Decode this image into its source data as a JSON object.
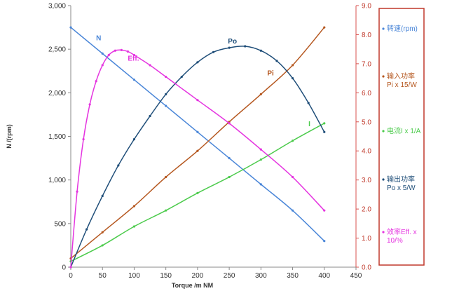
{
  "chart_data": {
    "type": "line",
    "xlabel": "Torque  /m NM",
    "ylabel": "N /(rpm)",
    "xlim": [
      0,
      450
    ],
    "xticks": [
      0,
      50,
      100,
      150,
      200,
      250,
      300,
      350,
      400,
      450
    ],
    "ylim_left": [
      0,
      3000
    ],
    "yticks_left": [
      "0",
      "500",
      "1,000",
      "1,500",
      "2,000",
      "2,500",
      "3,000"
    ],
    "yticks_left_values": [
      0,
      500,
      1000,
      1500,
      2000,
      2500,
      3000
    ],
    "ylim_right": [
      0,
      9
    ],
    "yticks_right": [
      "0.0",
      "1.0",
      "2.0",
      "3.0",
      "4.0",
      "5.0",
      "6.0",
      "7.0",
      "8.0",
      "9.0"
    ],
    "yticks_right_values": [
      0,
      1,
      2,
      3,
      4,
      5,
      6,
      7,
      8,
      9
    ],
    "grid": false,
    "legend_position": "right",
    "series": [
      {
        "name": "N",
        "legend": "转速(rpm)",
        "axis": "left",
        "color": "#4a86d8",
        "x": [
          0,
          50,
          100,
          150,
          200,
          250,
          300,
          350,
          400
        ],
        "y": [
          2750,
          2450,
          2150,
          1850,
          1550,
          1250,
          950,
          650,
          300
        ],
        "label_at": [
          40,
          2600
        ]
      },
      {
        "name": "Pi",
        "legend": "输入功率\nPi  x 15/W",
        "axis": "right",
        "color": "#b5571f",
        "x": [
          0,
          50,
          100,
          150,
          200,
          250,
          300,
          350,
          400
        ],
        "y": [
          0.3,
          1.2,
          2.1,
          3.1,
          4.0,
          5.0,
          5.95,
          6.95,
          8.25
        ],
        "label_at": [
          310,
          6.6
        ]
      },
      {
        "name": "I",
        "legend": "电流I  x 1/A",
        "axis": "right",
        "color": "#4ccb4c",
        "x": [
          0,
          50,
          100,
          150,
          200,
          250,
          300,
          350,
          400
        ],
        "y": [
          0.2,
          0.75,
          1.4,
          1.95,
          2.55,
          3.1,
          3.7,
          4.35,
          4.95
        ],
        "label_at": [
          375,
          4.85
        ]
      },
      {
        "name": "Po",
        "legend": "输出功率\nPo x 5/W",
        "axis": "right",
        "color": "#1f4e79",
        "x": [
          0,
          25,
          50,
          75,
          100,
          125,
          150,
          175,
          200,
          225,
          250,
          275,
          300,
          325,
          350,
          375,
          400
        ],
        "y": [
          0.0,
          1.3,
          2.45,
          3.5,
          4.4,
          5.2,
          5.95,
          6.55,
          7.05,
          7.4,
          7.55,
          7.6,
          7.45,
          7.1,
          6.5,
          5.65,
          4.65
        ],
        "label_at": [
          248,
          7.7
        ]
      },
      {
        "name": "Eff.",
        "legend": "效率Eff.  x\n10/%",
        "axis": "right",
        "color": "#e535e0",
        "x": [
          0,
          10,
          20,
          30,
          40,
          50,
          60,
          70,
          80,
          90,
          100,
          125,
          150,
          200,
          250,
          300,
          350,
          400
        ],
        "y": [
          0.0,
          2.6,
          4.4,
          5.6,
          6.4,
          6.95,
          7.3,
          7.45,
          7.47,
          7.42,
          7.3,
          6.95,
          6.55,
          5.75,
          4.95,
          4.05,
          3.1,
          1.95
        ],
        "label_at": [
          90,
          7.1
        ]
      }
    ]
  }
}
